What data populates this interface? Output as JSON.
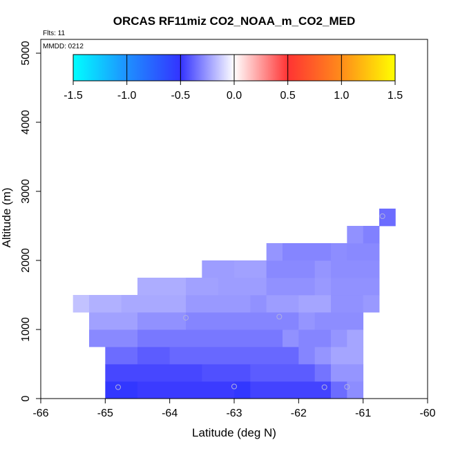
{
  "chart_data": {
    "type": "heatmap",
    "title": "ORCAS RF11miz CO2_NOAA_m_CO2_MED",
    "xlabel": "Latitude (deg N)",
    "ylabel": "Altitude (m)",
    "xlim": [
      -66,
      -60
    ],
    "ylim": [
      0,
      5200
    ],
    "x_ticks": [
      -66,
      -65,
      -64,
      -63,
      -62,
      -61,
      -60
    ],
    "x_tick_labels": [
      "-66",
      "-65",
      "-64",
      "-63",
      "-62",
      "-61",
      "-60"
    ],
    "y_ticks": [
      0,
      1000,
      2000,
      3000,
      4000,
      5000
    ],
    "y_tick_labels": [
      "0",
      "1000",
      "2000",
      "3000",
      "4000",
      "5000"
    ],
    "annotations": {
      "flights": "Flts: 11",
      "date": "MMDD: 0212"
    },
    "colorbar": {
      "range": [
        -1.5,
        1.5
      ],
      "ticks": [
        -1.5,
        -1.0,
        -0.5,
        0.0,
        0.5,
        1.0,
        1.5
      ],
      "tick_labels": [
        "-1.5",
        "-1.0",
        "-0.5",
        "0.0",
        "0.5",
        "1.0",
        "1.5"
      ],
      "stops": [
        {
          "value": -1.5,
          "color": "#00ffff"
        },
        {
          "value": -1.0,
          "color": "#1e90ff"
        },
        {
          "value": -0.5,
          "color": "#3333ff"
        },
        {
          "value": 0.0,
          "color": "#ffffff"
        },
        {
          "value": 0.5,
          "color": "#ff3333"
        },
        {
          "value": 1.0,
          "color": "#ff8c1a"
        },
        {
          "value": 1.5,
          "color": "#ffff00"
        }
      ]
    },
    "cell_width_deg": 0.25,
    "cell_height_m": 250,
    "rows": [
      {
        "alt": [
          0,
          250
        ],
        "cells": [
          [
            -65.0,
            -64.5,
            -0.52
          ],
          [
            -64.5,
            -63.0,
            -0.48
          ],
          [
            -63.0,
            -62.75,
            -0.52
          ],
          [
            -62.75,
            -61.5,
            -0.46
          ],
          [
            -61.5,
            -61.25,
            -0.36
          ],
          [
            -61.25,
            -61.0,
            -0.28
          ]
        ]
      },
      {
        "alt": [
          250,
          500
        ],
        "cells": [
          [
            -65.0,
            -63.5,
            -0.45
          ],
          [
            -63.5,
            -62.75,
            -0.43
          ],
          [
            -62.75,
            -61.75,
            -0.4
          ],
          [
            -61.75,
            -61.5,
            -0.34
          ],
          [
            -61.5,
            -61.0,
            -0.26
          ]
        ]
      },
      {
        "alt": [
          500,
          750
        ],
        "cells": [
          [
            -65.0,
            -64.5,
            -0.36
          ],
          [
            -64.5,
            -64.0,
            -0.4
          ],
          [
            -64.0,
            -62.0,
            -0.37
          ],
          [
            -62.0,
            -61.75,
            -0.3
          ],
          [
            -61.75,
            -61.5,
            -0.26
          ],
          [
            -61.5,
            -61.0,
            -0.22
          ]
        ]
      },
      {
        "alt": [
          750,
          1000
        ],
        "cells": [
          [
            -65.25,
            -64.5,
            -0.29
          ],
          [
            -64.5,
            -62.25,
            -0.33
          ],
          [
            -62.25,
            -62.0,
            -0.27
          ],
          [
            -62.0,
            -61.5,
            -0.3
          ],
          [
            -61.5,
            -61.25,
            -0.26
          ],
          [
            -61.25,
            -61.0,
            -0.22
          ]
        ]
      },
      {
        "alt": [
          1000,
          1250
        ],
        "cells": [
          [
            -65.25,
            -64.5,
            -0.23
          ],
          [
            -64.5,
            -63.75,
            -0.27
          ],
          [
            -63.75,
            -62.0,
            -0.3
          ],
          [
            -62.0,
            -61.75,
            -0.26
          ],
          [
            -61.75,
            -61.0,
            -0.28
          ]
        ]
      },
      {
        "alt": [
          1250,
          1500
        ],
        "cells": [
          [
            -65.5,
            -65.25,
            -0.15
          ],
          [
            -65.25,
            -64.75,
            -0.19
          ],
          [
            -64.75,
            -63.75,
            -0.21
          ],
          [
            -63.75,
            -62.75,
            -0.25
          ],
          [
            -62.75,
            -62.5,
            -0.27
          ],
          [
            -62.5,
            -62.0,
            -0.24
          ],
          [
            -62.0,
            -61.5,
            -0.22
          ],
          [
            -61.5,
            -61.0,
            -0.27
          ],
          [
            -61.0,
            -60.75,
            -0.25
          ]
        ]
      },
      {
        "alt": [
          1500,
          1750
        ],
        "cells": [
          [
            -64.5,
            -63.75,
            -0.2
          ],
          [
            -63.75,
            -63.25,
            -0.23
          ],
          [
            -63.25,
            -62.5,
            -0.24
          ],
          [
            -62.5,
            -61.75,
            -0.27
          ],
          [
            -61.75,
            -61.5,
            -0.25
          ],
          [
            -61.5,
            -60.75,
            -0.27
          ]
        ]
      },
      {
        "alt": [
          1750,
          2000
        ],
        "cells": [
          [
            -63.5,
            -63.0,
            -0.24
          ],
          [
            -63.0,
            -62.5,
            -0.23
          ],
          [
            -62.5,
            -61.75,
            -0.29
          ],
          [
            -61.75,
            -61.5,
            -0.26
          ],
          [
            -61.5,
            -60.75,
            -0.28
          ]
        ]
      },
      {
        "alt": [
          2000,
          2250
        ],
        "cells": [
          [
            -62.5,
            -62.25,
            -0.26
          ],
          [
            -62.25,
            -61.5,
            -0.3
          ],
          [
            -61.5,
            -61.25,
            -0.28
          ],
          [
            -61.25,
            -60.75,
            -0.29
          ]
        ]
      },
      {
        "alt": [
          2250,
          2500
        ],
        "cells": [
          [
            -61.25,
            -61.0,
            -0.27
          ],
          [
            -61.0,
            -60.75,
            -0.31
          ]
        ]
      },
      {
        "alt": [
          2500,
          2750
        ],
        "cells": [
          [
            -60.75,
            -60.5,
            -0.36
          ]
        ]
      }
    ],
    "markers": [
      {
        "lat": -64.8,
        "alt": 165
      },
      {
        "lat": -63.0,
        "alt": 175
      },
      {
        "lat": -61.6,
        "alt": 165
      },
      {
        "lat": -61.25,
        "alt": 170
      },
      {
        "lat": -63.75,
        "alt": 1170
      },
      {
        "lat": -62.3,
        "alt": 1185
      },
      {
        "lat": -60.7,
        "alt": 2640
      }
    ]
  }
}
